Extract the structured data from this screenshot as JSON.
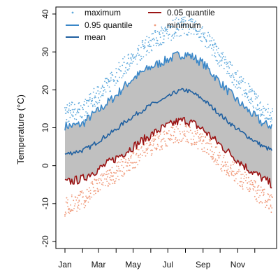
{
  "chart_data": {
    "type": "line",
    "title": "",
    "xlabel": "",
    "ylabel": "Temperature (°C)",
    "xlim": [
      1,
      366
    ],
    "ylim": [
      -20,
      40
    ],
    "x_ticks": [
      {
        "label": "Jan",
        "day": 1
      },
      {
        "label": "Mar",
        "day": 60
      },
      {
        "label": "May",
        "day": 121
      },
      {
        "label": "Jul",
        "day": 182
      },
      {
        "label": "Sep",
        "day": 244
      },
      {
        "label": "Nov",
        "day": 305
      }
    ],
    "minor_x_ticks": [
      32,
      91,
      152,
      213,
      274,
      335
    ],
    "y_ticks": [
      -20,
      -10,
      0,
      10,
      20,
      30,
      40
    ],
    "grid": false,
    "legend": {
      "placement": "top",
      "entries": [
        {
          "name": "maximum",
          "style": "points",
          "color": "#5fa9dc"
        },
        {
          "name": "0.05 quantile",
          "style": "line",
          "color": "#9b1515"
        },
        {
          "name": "0.95 quantile",
          "style": "line",
          "color": "#3a87c8"
        },
        {
          "name": "minimum",
          "style": "points",
          "color": "#f09a7b"
        },
        {
          "name": "mean",
          "style": "line",
          "color": "#2060a0"
        }
      ]
    },
    "band_fill_color": "#c0c0c0",
    "x_day": [
      1,
      15,
      32,
      46,
      60,
      75,
      91,
      106,
      121,
      136,
      152,
      167,
      182,
      197,
      213,
      228,
      244,
      259,
      274,
      289,
      305,
      320,
      335,
      350,
      366
    ],
    "series": [
      {
        "name": "maximum",
        "kind": "points",
        "color": "#5fa9dc",
        "values": [
          13.5,
          14.5,
          14,
          17,
          19,
          21,
          24,
          26.5,
          28,
          30.5,
          32.5,
          34,
          35,
          36.5,
          37,
          36,
          34.5,
          31.5,
          28.5,
          25.5,
          22.5,
          20,
          17,
          14.5,
          13.5
        ]
      },
      {
        "name": "0.95 quantile",
        "kind": "line",
        "color": "#3a87c8",
        "values": [
          10.5,
          10.5,
          11,
          13,
          14.5,
          16.5,
          18.5,
          21,
          23,
          24.5,
          26,
          27,
          28,
          29,
          29.5,
          28.5,
          27,
          24.5,
          22,
          19.5,
          17,
          15,
          13,
          11,
          10.5
        ]
      },
      {
        "name": "mean",
        "kind": "line",
        "color": "#2060a0",
        "values": [
          3,
          3.5,
          4,
          5,
          6.5,
          8,
          9.5,
          11.5,
          13,
          14.5,
          16,
          17,
          18,
          19.5,
          20,
          19,
          17.5,
          15.5,
          13.5,
          11.5,
          9.5,
          8,
          6.5,
          5,
          4
        ]
      },
      {
        "name": "0.05 quantile",
        "kind": "line",
        "color": "#9b1515",
        "values": [
          -4.5,
          -4,
          -3.5,
          -2,
          -1,
          0.5,
          2,
          3.5,
          5,
          6.5,
          8,
          9.5,
          10.5,
          11.5,
          12,
          11,
          9.5,
          7.5,
          5.5,
          3.5,
          1.5,
          -0.5,
          -2,
          -3.5,
          -5
        ]
      },
      {
        "name": "minimum",
        "kind": "points",
        "color": "#f09a7b",
        "values": [
          -11,
          -10,
          -9,
          -7,
          -5,
          -3.5,
          -2,
          0,
          1.5,
          3.5,
          5,
          6.5,
          7.5,
          8.5,
          8.5,
          7.5,
          6,
          4,
          1.5,
          -0.5,
          -2.5,
          -4.5,
          -6.5,
          -8.5,
          -10
        ]
      }
    ]
  }
}
